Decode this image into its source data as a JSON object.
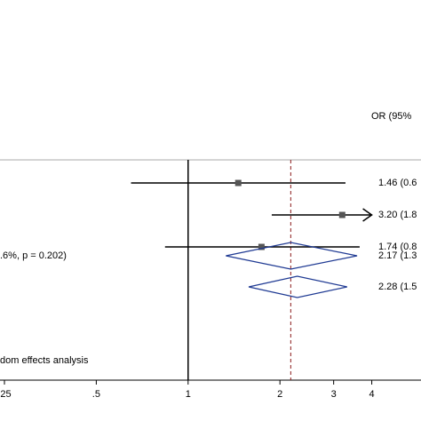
{
  "chart_data": {
    "type": "forest",
    "header": "OR (95%",
    "heterogeneity": ".6%, p = 0.202)",
    "footnote": "dom effects analysis",
    "log_x": true,
    "xlim": [
      0.25,
      5.8
    ],
    "xticks": [
      {
        "value": 0.25,
        "label": ".25"
      },
      {
        "value": 0.5,
        "label": ".5"
      },
      1,
      2,
      3,
      4
    ],
    "reference": 1,
    "overall_line": 2.17,
    "studies": {
      "estimates": [
        1.46,
        3.2,
        1.74
      ],
      "lower": [
        0.65,
        1.88,
        0.84
      ],
      "upper": [
        3.28,
        null,
        3.65
      ],
      "labels": [
        "1.46 (0.6",
        "3.20 (1.8",
        "1.74 (0.8"
      ]
    },
    "pooled": {
      "estimates": [
        2.17,
        2.28
      ],
      "lower": [
        1.33,
        1.58
      ],
      "upper": [
        3.58,
        3.32
      ],
      "labels": [
        "2.17 (1.3",
        "2.28 (1.5"
      ],
      "color": "#1f3a93"
    },
    "line_color": "#8b1a1a"
  }
}
